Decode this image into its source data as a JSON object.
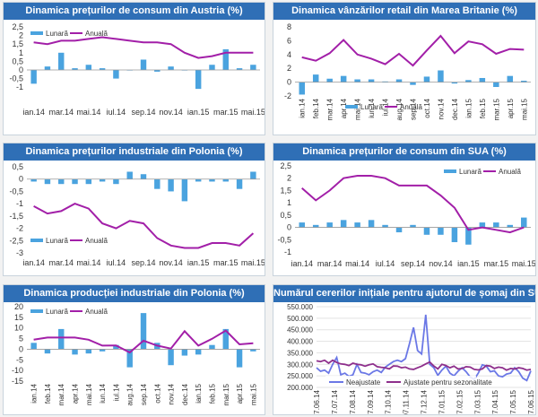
{
  "legend": {
    "monthly": "Lunară",
    "annual": "Anuală",
    "unadjusted": "Neajustate",
    "adjusted": "Ajustate pentru sezonalitate"
  },
  "colors": {
    "title_bg": "#2f6fb6",
    "bar": "#4aa3df",
    "line": "#a21fa8",
    "unadjusted": "#6b78e6",
    "adjusted": "#8e2f8c"
  },
  "chart_data": [
    {
      "id": "austria",
      "type": "bar",
      "title": "Dinamica prețurilor de consum din Austria (%)",
      "categories": [
        "ian.14",
        "feb.14",
        "mar.14",
        "apr.14",
        "mai.14",
        "iun.14",
        "iul.14",
        "aug.14",
        "sep.14",
        "oct.14",
        "nov.14",
        "dec.14",
        "ian.15",
        "feb.15",
        "mar.15",
        "apr.15",
        "mai.15"
      ],
      "tick_labels": [
        "ian.14",
        "mar.14",
        "mai.14",
        "iul.14",
        "sep.14",
        "nov.14",
        "ian.15",
        "mar.15",
        "mai.15"
      ],
      "series": [
        {
          "name": "Lunară",
          "kind": "bar",
          "values": [
            -0.8,
            0.2,
            1.0,
            0.1,
            0.3,
            0.1,
            -0.5,
            0.0,
            0.6,
            -0.1,
            0.2,
            0.0,
            -1.1,
            0.3,
            1.2,
            0.1,
            0.3
          ]
        },
        {
          "name": "Anuală",
          "kind": "line",
          "values": [
            1.6,
            1.5,
            1.7,
            1.7,
            1.8,
            1.9,
            1.8,
            1.7,
            1.6,
            1.6,
            1.5,
            1.0,
            0.7,
            0.8,
            1.0,
            1.0,
            1.0
          ]
        }
      ],
      "yticks": [
        -1,
        -0.5,
        0,
        0.5,
        1,
        1.5,
        2,
        2.5
      ],
      "ylim": [
        -1.25,
        2.5
      ],
      "legend_position": "top-left"
    },
    {
      "id": "uk",
      "type": "bar",
      "title": "Dinamica vânzărilor retail din Marea Britanie (%)",
      "categories": [
        "ian.14",
        "feb.14",
        "mar.14",
        "apr.14",
        "mai.14",
        "iun.14",
        "iul.14",
        "aug.14",
        "sep.14",
        "oct.14",
        "nov.14",
        "dec.14",
        "ian.15",
        "feb.15",
        "mar.15",
        "apr.15",
        "mai.15"
      ],
      "tick_labels": [
        "ian.14",
        "feb.14",
        "mar.14",
        "apr.14",
        "mai.14",
        "iun.14",
        "iul.14",
        "aug.14",
        "sep.14",
        "oct.14",
        "nov.14",
        "dec.14",
        "ian.15",
        "feb.15",
        "mar.15",
        "apr.15",
        "mai.15"
      ],
      "series": [
        {
          "name": "Lunară",
          "kind": "bar",
          "values": [
            -1.8,
            1.1,
            0.5,
            0.9,
            0.4,
            0.4,
            0.1,
            0.4,
            -0.4,
            0.8,
            1.7,
            -0.2,
            0.3,
            0.6,
            -0.7,
            0.9,
            0.2
          ]
        },
        {
          "name": "Anuală",
          "kind": "line",
          "values": [
            3.6,
            3.1,
            4.2,
            6.1,
            4.0,
            3.4,
            2.6,
            4.1,
            2.4,
            4.6,
            6.7,
            4.2,
            5.9,
            5.5,
            4.1,
            4.8,
            4.7
          ]
        }
      ],
      "yticks": [
        -2,
        0,
        2,
        4,
        6,
        8
      ],
      "ylim": [
        -2,
        8
      ],
      "legend_position": "bottom-center"
    },
    {
      "id": "poland_ppi",
      "type": "bar",
      "title": "Dinamica prețurilor industriale din Polonia (%)",
      "categories": [
        "ian.14",
        "feb.14",
        "mar.14",
        "apr.14",
        "mai.14",
        "iun.14",
        "iul.14",
        "aug.14",
        "sep.14",
        "oct.14",
        "nov.14",
        "dec.14",
        "ian.15",
        "feb.15",
        "mar.15",
        "apr.15",
        "mai.15"
      ],
      "tick_labels": [
        "ian.14",
        "mar.14",
        "mai.14",
        "iul.14",
        "sep.14",
        "nov.14",
        "ian.15",
        "mar.15",
        "mai.15"
      ],
      "series": [
        {
          "name": "Lunară",
          "kind": "bar",
          "values": [
            -0.1,
            -0.2,
            -0.2,
            -0.2,
            -0.2,
            -0.1,
            -0.2,
            0.3,
            0.2,
            -0.4,
            -0.5,
            -0.9,
            -0.1,
            -0.1,
            -0.1,
            -0.4,
            0.3
          ]
        },
        {
          "name": "Anuală",
          "kind": "line",
          "values": [
            -1.1,
            -1.4,
            -1.3,
            -1.0,
            -1.2,
            -1.8,
            -2.0,
            -1.7,
            -1.8,
            -2.4,
            -2.7,
            -2.8,
            -2.8,
            -2.6,
            -2.6,
            -2.7,
            -2.2
          ]
        }
      ],
      "yticks": [
        -3,
        -2.5,
        -2,
        -1.5,
        -1,
        -0.5,
        0,
        0.5
      ],
      "ylim": [
        -3,
        0.5
      ],
      "legend_position": "bottom-left"
    },
    {
      "id": "usa_cpi",
      "type": "bar",
      "title": "Dinamica prețurilor de consum din SUA (%)",
      "categories": [
        "ian.14",
        "feb.14",
        "mar.14",
        "apr.14",
        "mai.14",
        "iun.14",
        "iul.14",
        "aug.14",
        "sep.14",
        "oct.14",
        "nov.14",
        "dec.14",
        "ian.15",
        "feb.15",
        "mar.15",
        "apr.15",
        "mai.15"
      ],
      "tick_labels": [
        "ian.14",
        "mar.14",
        "mai.14",
        "iul.14",
        "sep.14",
        "nov.14",
        "ian.15",
        "mar.15",
        "mai.15"
      ],
      "series": [
        {
          "name": "Lunară",
          "kind": "bar",
          "values": [
            0.2,
            0.1,
            0.2,
            0.3,
            0.2,
            0.3,
            0.1,
            -0.2,
            0.1,
            -0.3,
            -0.3,
            -0.6,
            -0.7,
            0.2,
            0.2,
            0.1,
            0.4
          ]
        },
        {
          "name": "Anuală",
          "kind": "line",
          "values": [
            1.6,
            1.1,
            1.5,
            2.0,
            2.1,
            2.1,
            2.0,
            1.7,
            1.7,
            1.7,
            1.3,
            0.8,
            -0.1,
            0.0,
            -0.1,
            -0.2,
            0.0
          ]
        }
      ],
      "yticks": [
        -1,
        -0.5,
        0,
        0.5,
        1,
        1.5,
        2,
        2.5
      ],
      "ylim": [
        -1,
        2.5
      ],
      "legend_position": "top-right"
    },
    {
      "id": "poland_ip",
      "type": "bar",
      "title": "Dinamica producției industriale din Polonia (%)",
      "categories": [
        "ian.14",
        "feb.14",
        "mar.14",
        "apr.14",
        "mai.14",
        "iun.14",
        "iul.14",
        "aug.14",
        "sep.14",
        "oct.14",
        "nov.14",
        "dec.14",
        "ian.15",
        "feb.15",
        "mar.15",
        "apr.15",
        "mai.15"
      ],
      "tick_labels": [
        "ian.14",
        "feb.14",
        "mar.14",
        "apr.14",
        "mai.14",
        "iun.14",
        "iul.14",
        "aug.14",
        "sep.14",
        "oct.14",
        "nov.14",
        "dec.14",
        "ian.15",
        "feb.15",
        "mar.15",
        "apr.15",
        "mai.15"
      ],
      "series": [
        {
          "name": "Lunară",
          "kind": "bar",
          "values": [
            3.0,
            -2.0,
            9.5,
            -2.5,
            -2.0,
            -1.0,
            2.0,
            -8.5,
            17.0,
            3.0,
            -7.5,
            -3.0,
            -2.5,
            2.0,
            9.5,
            -8.5,
            -1.0
          ]
        },
        {
          "name": "Anuală",
          "kind": "line",
          "values": [
            4.5,
            5.5,
            5.5,
            5.5,
            4.5,
            1.7,
            1.8,
            -1.5,
            4.0,
            1.7,
            0.3,
            8.5,
            1.7,
            4.9,
            8.8,
            2.3,
            2.8
          ]
        }
      ],
      "yticks": [
        -15,
        -10,
        -5,
        0,
        5,
        10,
        15,
        20
      ],
      "ylim": [
        -15,
        20
      ],
      "legend_position": "top-left"
    },
    {
      "id": "usa_claims",
      "type": "line",
      "title": "Numărul cererilor inițiale pentru ajutorul de șomaj din SUA",
      "tick_labels": [
        "07.06.14",
        "07.07.14",
        "07.08.14",
        "07.09.14",
        "07.10.14",
        "07.11.14",
        "07.12.14",
        "07.01.15",
        "07.02.15",
        "07.03.15",
        "07.04.15",
        "07.05.15",
        "07.06.15"
      ],
      "series": [
        {
          "name": "Neajustate",
          "values": [
            285000,
            270000,
            275000,
            262000,
            300000,
            330000,
            255000,
            262000,
            248000,
            255000,
            300000,
            265000,
            262000,
            255000,
            268000,
            275000,
            265000,
            288000,
            300000,
            312000,
            318000,
            312000,
            325000,
            390000,
            460000,
            360000,
            345000,
            515000,
            300000,
            285000,
            252000,
            275000,
            292000,
            262000,
            250000,
            270000,
            285000,
            268000,
            245000,
            235000,
            262000,
            298000,
            292000,
            268000,
            272000,
            250000,
            246000,
            258000,
            262000,
            285000,
            268000,
            240000,
            230000,
            272000
          ]
        },
        {
          "name": "Ajustate pentru sezonalitate",
          "values": [
            315000,
            312000,
            318000,
            305000,
            318000,
            308000,
            302000,
            300000,
            295000,
            305000,
            300000,
            298000,
            292000,
            298000,
            302000,
            290000,
            287000,
            285000,
            280000,
            293000,
            292000,
            285000,
            288000,
            280000,
            278000,
            285000,
            292000,
            302000,
            310000,
            293000,
            280000,
            300000,
            295000,
            285000,
            292000,
            280000,
            282000,
            290000,
            288000,
            278000,
            276000,
            280000,
            295000,
            292000,
            282000,
            288000,
            285000,
            275000,
            282000,
            280000,
            285000,
            282000,
            275000,
            278000
          ]
        }
      ],
      "yticks": [
        200000,
        250000,
        300000,
        350000,
        400000,
        450000,
        500000,
        550000
      ],
      "ytick_labels": [
        "200.000",
        "250.000",
        "300.000",
        "350.000",
        "400.000",
        "450.000",
        "500.000",
        "550.000"
      ],
      "ylim": [
        200000,
        550000
      ],
      "legend_position": "bottom-center"
    }
  ]
}
